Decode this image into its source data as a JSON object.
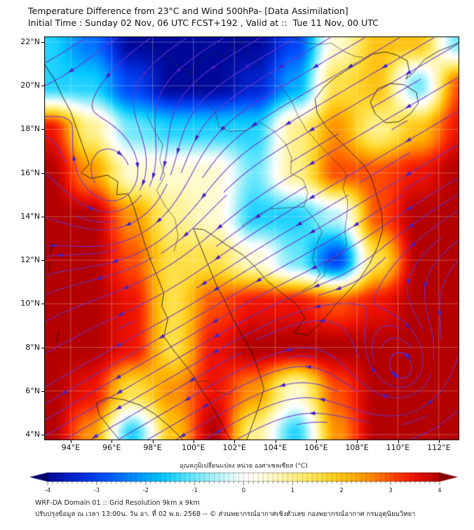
{
  "title": "Temperature Difference from 23°C and Wind 500hPa- [Data Assimilation]",
  "subtitle": "Initial Time : Sunday 02 Nov, 06 UTC FCST+192 , Valid at ::  Tue 11 Nov, 00 UTC",
  "footer": {
    "line1": "WRF-DA Domain 01 :: Grid Resolution 9km x 9km",
    "line2": "ปรับปรุงข้อมูล ณ เวลา 13:00น. วัน อา. ที่ 02 พ.ย. 2568 -- © ส่วนพยากรณ์อากาศเชิงตัวเลข กองพยากรณ์อากาศ กรมอุตุนิยมวิทยา"
  },
  "chart_data": {
    "type": "heatmap+streamlines",
    "title": "Temperature Difference from 23°C and Wind 500hPa- [Data Assimilation]",
    "grid_on": true,
    "axes": {
      "x": {
        "range": [
          92.7,
          113.0
        ],
        "tick_values": [
          94,
          96,
          98,
          100,
          102,
          104,
          106,
          108,
          110,
          112
        ],
        "tick_labels": [
          "94°E",
          "96°E",
          "98°E",
          "100°E",
          "102°E",
          "104°E",
          "106°E",
          "108°E",
          "110°E",
          "112°E"
        ]
      },
      "y": {
        "range": [
          3.74,
          22.26
        ],
        "tick_values": [
          22,
          20,
          18,
          16,
          14,
          12,
          10,
          8,
          6,
          4
        ],
        "tick_labels": [
          "22°N",
          "20°N",
          "18°N",
          "16°N",
          "14°N",
          "12°N",
          "10°N",
          "8°N",
          "6°N",
          "4°N"
        ]
      }
    },
    "field": {
      "name": "temperature difference from 23°C (°C) at 500hPa",
      "lons": [
        93,
        95,
        97,
        99,
        101,
        103,
        105,
        107,
        109,
        111,
        113
      ],
      "lats": [
        22,
        20,
        18,
        16,
        14,
        12,
        10,
        8,
        6,
        4
      ],
      "values": [
        [
          -1.5,
          -2.5,
          -4.0,
          -4.0,
          -4.0,
          -4.0,
          -3.0,
          0.5,
          2.0,
          2.0,
          -1.0
        ],
        [
          -1.5,
          -1.5,
          -3.0,
          -4.0,
          -4.0,
          -3.5,
          -2.0,
          1.5,
          2.0,
          -1.0,
          3.0
        ],
        [
          3.5,
          1.0,
          -1.0,
          -1.5,
          -1.5,
          -1.5,
          1.0,
          2.5,
          1.0,
          2.0,
          3.5
        ],
        [
          4.0,
          2.5,
          0.5,
          0.5,
          0.5,
          -1.0,
          1.0,
          3.0,
          3.0,
          3.5,
          4.0
        ],
        [
          4.0,
          4.0,
          2.5,
          1.0,
          0.5,
          -1.5,
          -1.5,
          -0.5,
          3.0,
          4.0,
          4.0
        ],
        [
          4.0,
          4.0,
          3.0,
          1.5,
          1.5,
          0.5,
          -1.0,
          -3.0,
          1.5,
          4.0,
          4.0
        ],
        [
          4.0,
          4.0,
          3.5,
          1.5,
          3.0,
          3.5,
          3.5,
          3.0,
          3.5,
          4.0,
          4.0
        ],
        [
          4.0,
          4.0,
          3.5,
          1.5,
          3.5,
          4.0,
          4.0,
          4.0,
          4.0,
          4.0,
          4.0
        ],
        [
          4.0,
          3.5,
          1.5,
          2.5,
          3.5,
          2.5,
          0.5,
          3.0,
          4.0,
          4.0,
          4.0
        ],
        [
          4.0,
          2.5,
          -1.5,
          2.0,
          4.0,
          1.0,
          -1.5,
          2.5,
          4.0,
          4.0,
          4.0
        ]
      ]
    },
    "colorbar": {
      "label": "อุณหภูมิเปลี่ยนแปลง หน่วย องศาเซลเซียส (°C)",
      "ticks": [
        -4,
        -3,
        -2,
        -1,
        0,
        1,
        2,
        3,
        4
      ],
      "stops": [
        [
          -4.5,
          "#000060"
        ],
        [
          -4,
          "#000899"
        ],
        [
          -3.4,
          "#0028D8"
        ],
        [
          -2.8,
          "#0055FF"
        ],
        [
          -2.2,
          "#0092FF"
        ],
        [
          -1.7,
          "#00C6FF"
        ],
        [
          -1.2,
          "#4FE3FF"
        ],
        [
          -0.7,
          "#A0F0FA"
        ],
        [
          -0.3,
          "#D8FAFD"
        ],
        [
          0,
          "#FFFFFF"
        ],
        [
          0.3,
          "#FFFDE8"
        ],
        [
          0.7,
          "#FFF8B8"
        ],
        [
          1.2,
          "#FFEC70"
        ],
        [
          1.7,
          "#FFD830"
        ],
        [
          2.2,
          "#FFB400"
        ],
        [
          2.7,
          "#FF7C00"
        ],
        [
          3.1,
          "#FF3E00"
        ],
        [
          3.5,
          "#EE1200"
        ],
        [
          4,
          "#B40000"
        ],
        [
          4.5,
          "#7C0000"
        ]
      ]
    },
    "wind": {
      "level": "500hPa",
      "background_uv": [
        -1.0,
        -0.55
      ],
      "vortices": [
        {
          "center": [
            96.2,
            15.6
          ],
          "strength": 2.5,
          "sigma": 2.8,
          "rotation": "clockwise"
        },
        {
          "center": [
            110.3,
            6.9
          ],
          "strength": 2.2,
          "sigma": 3.0,
          "rotation": "clockwise"
        }
      ],
      "line_color": "#6B35CC",
      "arrow_color": "#4520C8"
    },
    "coastlines": [
      [
        [
          92.7,
          21.0
        ],
        [
          93.2,
          20.3
        ],
        [
          93.6,
          19.5
        ],
        [
          94.0,
          18.8
        ],
        [
          94.3,
          18.0
        ],
        [
          94.6,
          17.2
        ],
        [
          94.9,
          16.4
        ],
        [
          94.5,
          16.0
        ],
        [
          95.0,
          15.75
        ],
        [
          95.8,
          15.9
        ],
        [
          96.3,
          15.6
        ],
        [
          96.25,
          15.0
        ],
        [
          96.8,
          15.05
        ],
        [
          97.1,
          14.4
        ],
        [
          97.35,
          13.6
        ],
        [
          97.6,
          12.8
        ],
        [
          97.9,
          12.0
        ],
        [
          98.25,
          11.2
        ],
        [
          98.55,
          10.5
        ],
        [
          98.45,
          9.9
        ],
        [
          98.75,
          9.3
        ],
        [
          98.55,
          8.5
        ],
        [
          99.0,
          7.9
        ],
        [
          99.5,
          7.3
        ],
        [
          100.0,
          6.7
        ],
        [
          100.35,
          6.1
        ],
        [
          100.8,
          5.5
        ],
        [
          101.2,
          4.8
        ],
        [
          101.6,
          4.1
        ],
        [
          101.85,
          3.74
        ]
      ],
      [
        [
          102.6,
          3.74
        ],
        [
          102.9,
          4.5
        ],
        [
          103.2,
          5.3
        ],
        [
          103.45,
          6.1
        ],
        [
          103.2,
          6.9
        ],
        [
          102.9,
          7.7
        ],
        [
          102.4,
          8.5
        ],
        [
          101.95,
          9.3
        ],
        [
          101.55,
          10.1
        ],
        [
          101.1,
          10.9
        ],
        [
          100.75,
          11.7
        ],
        [
          100.45,
          12.4
        ],
        [
          100.15,
          13.1
        ],
        [
          100.0,
          13.45
        ],
        [
          100.5,
          13.4
        ],
        [
          101.0,
          13.1
        ],
        [
          101.7,
          12.65
        ],
        [
          102.4,
          12.25
        ],
        [
          103.0,
          11.7
        ],
        [
          103.6,
          11.05
        ],
        [
          104.3,
          10.5
        ],
        [
          105.0,
          10.0
        ],
        [
          105.45,
          9.35
        ],
        [
          104.95,
          8.65
        ],
        [
          105.6,
          8.55
        ],
        [
          106.3,
          9.2
        ],
        [
          106.9,
          9.9
        ],
        [
          107.5,
          10.5
        ],
        [
          108.1,
          11.1
        ],
        [
          108.6,
          11.8
        ],
        [
          109.0,
          12.6
        ],
        [
          109.25,
          13.4
        ],
        [
          109.2,
          14.2
        ],
        [
          108.95,
          15.0
        ],
        [
          108.7,
          15.8
        ],
        [
          108.3,
          16.4
        ],
        [
          107.7,
          16.95
        ],
        [
          107.1,
          17.5
        ],
        [
          106.5,
          18.1
        ],
        [
          106.05,
          18.75
        ],
        [
          105.95,
          19.4
        ],
        [
          106.4,
          19.95
        ],
        [
          106.9,
          20.35
        ],
        [
          107.55,
          20.75
        ],
        [
          108.2,
          21.1
        ],
        [
          108.75,
          21.45
        ],
        [
          109.4,
          21.55
        ],
        [
          109.95,
          21.4
        ],
        [
          110.45,
          21.15
        ],
        [
          110.55,
          20.7
        ],
        [
          110.4,
          20.3
        ],
        [
          110.75,
          20.6
        ],
        [
          111.3,
          21.2
        ],
        [
          112.0,
          21.6
        ],
        [
          112.7,
          21.85
        ],
        [
          113.0,
          22.0
        ]
      ],
      [
        [
          108.65,
          19.25
        ],
        [
          109.0,
          19.85
        ],
        [
          109.6,
          20.1
        ],
        [
          110.3,
          20.05
        ],
        [
          110.9,
          19.7
        ],
        [
          111.0,
          19.2
        ],
        [
          110.6,
          18.7
        ],
        [
          110.05,
          18.35
        ],
        [
          109.4,
          18.3
        ],
        [
          108.9,
          18.7
        ],
        [
          108.65,
          19.25
        ]
      ],
      [
        [
          96.4,
          3.74
        ],
        [
          95.9,
          4.3
        ],
        [
          95.4,
          4.9
        ],
        [
          95.25,
          5.45
        ],
        [
          95.8,
          5.7
        ],
        [
          96.6,
          5.6
        ],
        [
          97.4,
          5.35
        ],
        [
          98.1,
          4.95
        ],
        [
          98.8,
          4.4
        ],
        [
          99.35,
          3.9
        ],
        [
          99.5,
          3.74
        ]
      ],
      [
        [
          93.0,
          12.3
        ],
        [
          93.08,
          12.8
        ]
      ],
      [
        [
          92.92,
          11.5
        ],
        [
          93.0,
          11.9
        ]
      ],
      [
        [
          93.3,
          8.2
        ],
        [
          93.4,
          8.7
        ]
      ]
    ],
    "borders": [
      [
        [
          97.6,
          22.26
        ],
        [
          98.1,
          21.7
        ],
        [
          98.7,
          21.3
        ],
        [
          99.3,
          20.9
        ],
        [
          99.9,
          20.5
        ],
        [
          100.15,
          20.9
        ],
        [
          100.5,
          21.3
        ],
        [
          101.0,
          21.55
        ],
        [
          101.5,
          21.3
        ],
        [
          101.8,
          21.8
        ],
        [
          102.1,
          22.26
        ]
      ],
      [
        [
          100.1,
          20.3
        ],
        [
          100.35,
          19.7
        ],
        [
          100.7,
          19.2
        ],
        [
          101.1,
          18.7
        ],
        [
          101.25,
          18.1
        ],
        [
          101.8,
          17.9
        ],
        [
          102.6,
          17.95
        ],
        [
          103.3,
          18.3
        ],
        [
          103.95,
          17.9
        ],
        [
          104.5,
          17.35
        ],
        [
          104.8,
          16.7
        ],
        [
          104.75,
          16.0
        ],
        [
          105.35,
          15.7
        ],
        [
          105.6,
          15.1
        ],
        [
          105.4,
          14.45
        ]
      ],
      [
        [
          102.35,
          13.55
        ],
        [
          103.0,
          14.0
        ],
        [
          103.75,
          14.35
        ],
        [
          104.6,
          14.4
        ],
        [
          105.4,
          14.45
        ]
      ],
      [
        [
          105.4,
          14.45
        ],
        [
          105.9,
          13.9
        ],
        [
          106.3,
          13.3
        ],
        [
          106.0,
          12.7
        ],
        [
          105.8,
          12.0
        ],
        [
          106.2,
          11.4
        ],
        [
          105.9,
          10.9
        ],
        [
          105.3,
          10.6
        ]
      ],
      [
        [
          102.15,
          22.26
        ],
        [
          102.6,
          21.6
        ],
        [
          103.1,
          21.0
        ],
        [
          103.7,
          20.5
        ],
        [
          104.3,
          19.95
        ],
        [
          104.8,
          19.3
        ],
        [
          105.1,
          18.65
        ],
        [
          105.5,
          18.0
        ],
        [
          106.1,
          17.35
        ],
        [
          106.7,
          16.75
        ],
        [
          107.25,
          16.25
        ],
        [
          107.5,
          15.9
        ],
        [
          107.3,
          15.3
        ],
        [
          107.55,
          14.7
        ],
        [
          107.5,
          14.0
        ],
        [
          107.4,
          13.4
        ],
        [
          107.5,
          12.7
        ],
        [
          107.1,
          12.2
        ],
        [
          106.5,
          11.9
        ],
        [
          106.4,
          11.3
        ],
        [
          105.9,
          10.9
        ]
      ],
      [
        [
          97.75,
          18.6
        ],
        [
          98.1,
          17.9
        ],
        [
          98.5,
          17.3
        ],
        [
          98.35,
          16.6
        ],
        [
          98.6,
          15.9
        ],
        [
          98.2,
          15.2
        ],
        [
          98.6,
          14.5
        ],
        [
          99.1,
          13.9
        ],
        [
          99.25,
          13.1
        ],
        [
          99.05,
          12.4
        ]
      ],
      [
        [
          100.15,
          6.45
        ],
        [
          100.7,
          6.45
        ],
        [
          101.15,
          5.95
        ],
        [
          101.8,
          5.85
        ],
        [
          102.1,
          6.25
        ]
      ],
      [
        [
          104.8,
          22.26
        ],
        [
          105.4,
          22.0
        ],
        [
          106.1,
          21.9
        ],
        [
          106.75,
          21.95
        ],
        [
          107.3,
          21.6
        ],
        [
          107.9,
          21.35
        ],
        [
          108.3,
          21.3
        ]
      ]
    ]
  }
}
